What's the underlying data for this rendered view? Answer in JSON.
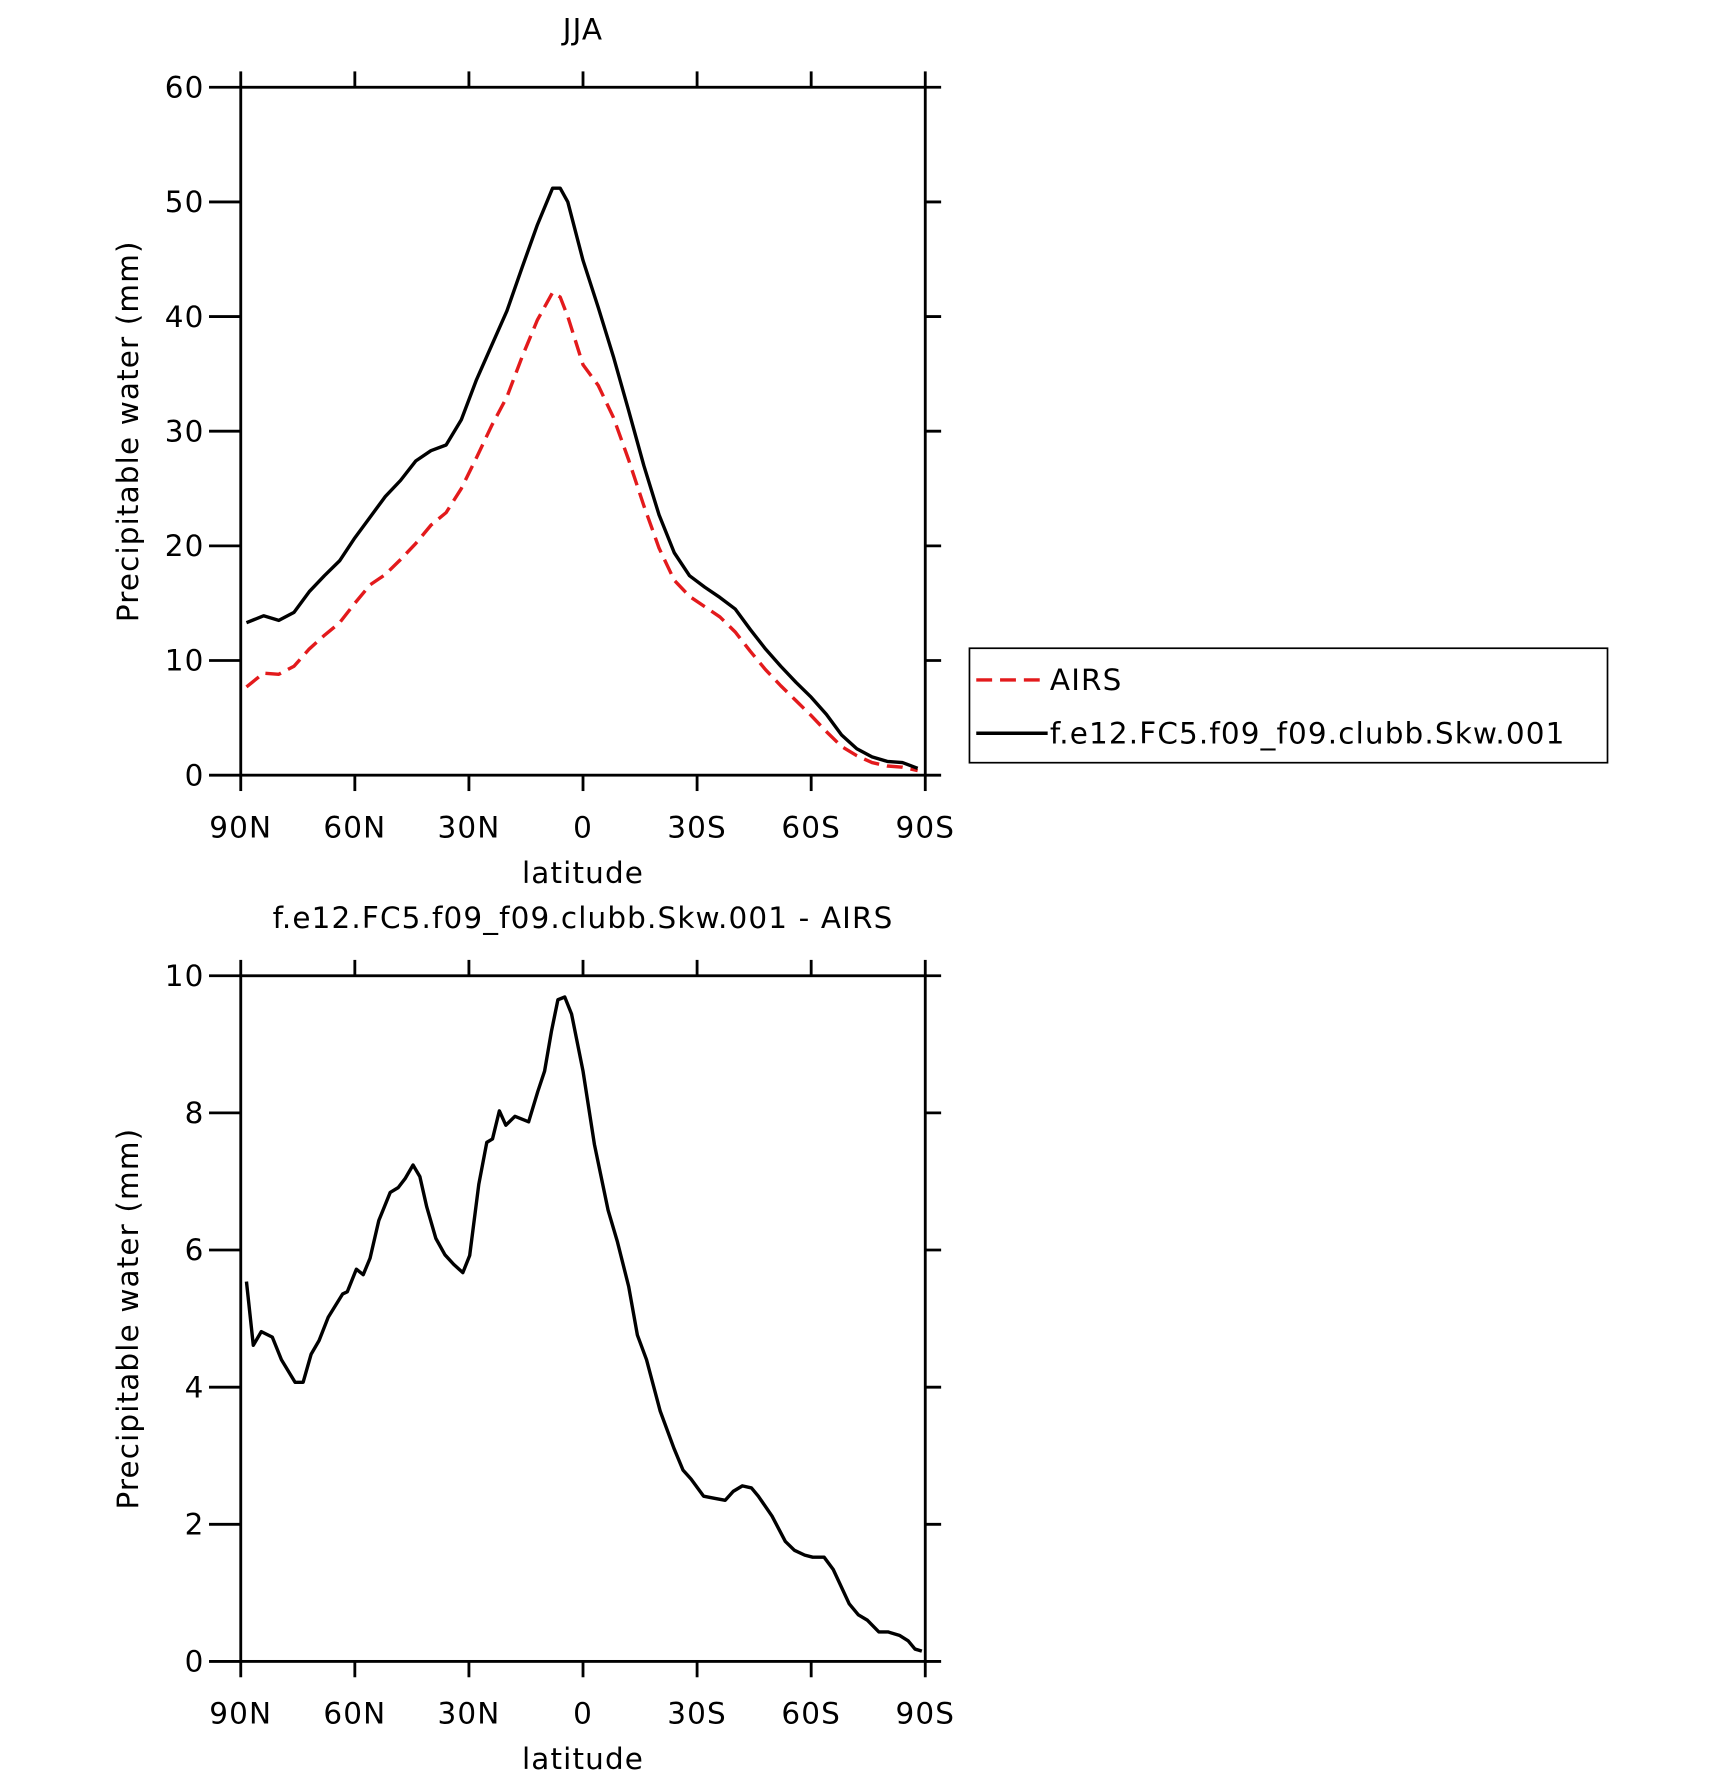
{
  "chart_data": [
    {
      "type": "line",
      "title": "JJA",
      "x_label": "latitude",
      "y_label": "Precipitable water (mm)",
      "x": [
        88.5,
        84,
        80,
        76,
        72,
        68,
        64,
        60,
        56,
        52,
        48,
        44,
        40,
        36,
        32,
        28,
        24,
        20,
        16,
        12,
        8,
        6,
        4,
        0,
        -4,
        -8,
        -12,
        -16,
        -20,
        -24,
        -28,
        -32,
        -36,
        -40,
        -44,
        -48,
        -52,
        -56,
        -60,
        -64,
        -68,
        -72,
        -76,
        -80,
        -84,
        -88
      ],
      "series": [
        {
          "name": "AIRS",
          "color": "#e31a1c",
          "line_style": "dashed",
          "values": [
            7.7,
            8.9,
            8.8,
            9.5,
            11,
            12.2,
            13.3,
            15,
            16.6,
            17.5,
            18.8,
            20.2,
            21.8,
            22.9,
            25,
            27.7,
            30.5,
            33,
            36.5,
            39.7,
            42.1,
            41.7,
            40,
            35.8,
            34,
            31.2,
            27.5,
            23.5,
            19.8,
            17,
            15.6,
            14.7,
            13.8,
            12.5,
            10.8,
            9.2,
            7.8,
            6.5,
            5.2,
            3.8,
            2.5,
            1.7,
            1.1,
            0.8,
            0.7,
            0.4
          ]
        },
        {
          "name": "f.e12.FC5.f09_f09.clubb.Skw.001",
          "color": "#000000",
          "line_style": "solid",
          "values": [
            13.3,
            13.9,
            13.5,
            14.2,
            16,
            17.4,
            18.7,
            20.7,
            22.5,
            24.3,
            25.7,
            27.4,
            28.3,
            28.8,
            31,
            34.5,
            37.5,
            40.5,
            44.3,
            48,
            51.2,
            51.2,
            50,
            44.9,
            40.8,
            36.5,
            31.8,
            27,
            22.7,
            19.4,
            17.4,
            16.4,
            15.5,
            14.5,
            12.7,
            11,
            9.5,
            8.1,
            6.8,
            5.3,
            3.5,
            2.3,
            1.6,
            1.2,
            1.1,
            0.6
          ]
        }
      ],
      "xlim": [
        90,
        -90
      ],
      "xticks": [
        {
          "value": 90,
          "label": "90N"
        },
        {
          "value": 60,
          "label": "60N"
        },
        {
          "value": 30,
          "label": "30N"
        },
        0,
        {
          "value": -30,
          "label": "30S"
        },
        {
          "value": -60,
          "label": "60S"
        },
        {
          "value": -90,
          "label": "90S"
        }
      ],
      "ylim": [
        0,
        60
      ],
      "yticks": [
        0,
        10,
        20,
        30,
        40,
        50,
        60
      ],
      "legend": "right"
    },
    {
      "type": "line",
      "title": "f.e12.FC5.f09_f09.clubb.Skw.001 - AIRS",
      "x_label": "latitude",
      "y_label": "Precipitable water (mm)",
      "x": [
        88.5,
        86.7,
        84.6,
        81.7,
        79.3,
        75.7,
        73.6,
        71.5,
        69.4,
        67,
        63.2,
        62,
        59.6,
        57.8,
        56,
        53.7,
        50.7,
        48.6,
        46.8,
        44.7,
        42.9,
        41.1,
        38.7,
        36.3,
        34,
        31.6,
        29.8,
        27.4,
        25.3,
        23.8,
        22,
        20.3,
        17.9,
        14.3,
        11.9,
        10.1,
        8.3,
        6.6,
        4.8,
        3,
        0,
        -3,
        -6.6,
        -9,
        -12,
        -14.3,
        -16.7,
        -20.3,
        -23.9,
        -26.3,
        -28.4,
        -31.7,
        -34.4,
        -37.4,
        -39.5,
        -41.9,
        -44.3,
        -46.1,
        -49.7,
        -53.2,
        -55.6,
        -58.3,
        -60.4,
        -63.4,
        -65.8,
        -70,
        -72.4,
        -74.8,
        -77.8,
        -80.2,
        -83.2,
        -85.5,
        -87.3,
        -89.1
      ],
      "color": "#000000",
      "values": [
        5.54,
        4.61,
        4.81,
        4.73,
        4.4,
        4.07,
        4.07,
        4.48,
        4.68,
        5.02,
        5.36,
        5.39,
        5.72,
        5.64,
        5.88,
        6.43,
        6.84,
        6.91,
        7.04,
        7.24,
        7.07,
        6.63,
        6.17,
        5.93,
        5.79,
        5.67,
        5.92,
        6.96,
        7.57,
        7.62,
        8.03,
        7.82,
        7.95,
        7.87,
        8.31,
        8.61,
        9.19,
        9.65,
        9.69,
        9.44,
        8.61,
        7.54,
        6.58,
        6.13,
        5.47,
        4.76,
        4.4,
        3.65,
        3.11,
        2.79,
        2.66,
        2.41,
        2.38,
        2.35,
        2.48,
        2.56,
        2.53,
        2.41,
        2.12,
        1.75,
        1.62,
        1.55,
        1.52,
        1.52,
        1.34,
        0.84,
        0.68,
        0.6,
        0.43,
        0.43,
        0.38,
        0.3,
        0.18,
        0.15
      ],
      "xlim": [
        90,
        -90
      ],
      "xticks": [
        {
          "value": 90,
          "label": "90N"
        },
        {
          "value": 60,
          "label": "60N"
        },
        {
          "value": 30,
          "label": "30N"
        },
        0,
        {
          "value": -30,
          "label": "30S"
        },
        {
          "value": -60,
          "label": "60S"
        },
        {
          "value": -90,
          "label": "90S"
        }
      ],
      "ylim": [
        0,
        10
      ],
      "yticks": [
        0,
        2,
        4,
        6,
        8,
        10
      ]
    }
  ]
}
